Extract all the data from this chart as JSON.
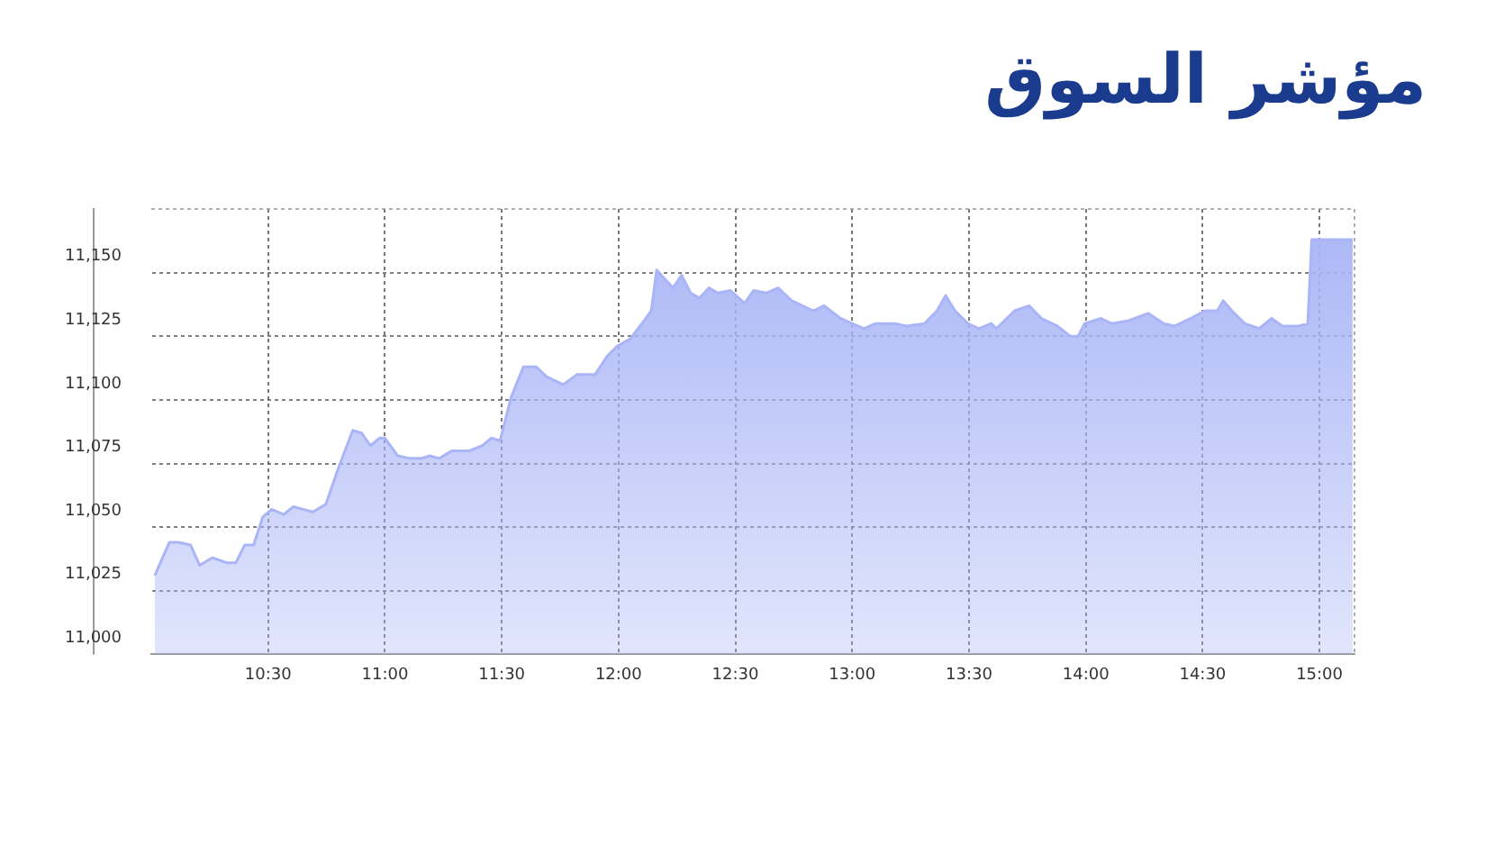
{
  "chart_data": {
    "type": "area",
    "title": "مؤشر السوق",
    "color": "#a9b5f6",
    "x": [
      10.015,
      10.077,
      10.115,
      10.168,
      10.207,
      10.262,
      10.323,
      10.362,
      10.4,
      10.438,
      10.477,
      10.515,
      10.567,
      10.608,
      10.65,
      10.692,
      10.747,
      10.8,
      10.862,
      10.9,
      10.938,
      10.977,
      11,
      11.055,
      11.108,
      11.155,
      11.193,
      11.233,
      11.287,
      11.362,
      11.417,
      11.455,
      11.493,
      11.54,
      11.593,
      11.647,
      11.693,
      11.763,
      11.823,
      11.9,
      11.95,
      11.993,
      12.05,
      12.108,
      12.14,
      12.163,
      12.193,
      12.233,
      12.27,
      12.308,
      12.347,
      12.387,
      12.425,
      12.478,
      12.54,
      12.578,
      12.633,
      12.683,
      12.74,
      12.833,
      12.88,
      12.95,
      13,
      13.05,
      13.1,
      13.183,
      13.233,
      13.31,
      13.363,
      13.4,
      13.44,
      13.495,
      13.542,
      13.595,
      13.617,
      13.695,
      13.757,
      13.81,
      13.878,
      13.933,
      13.967,
      13.995,
      14.065,
      14.11,
      14.178,
      14.267,
      14.333,
      14.38,
      14.448,
      14.51,
      14.563,
      14.588,
      14.625,
      14.68,
      14.742,
      14.795,
      14.842,
      14.91,
      14.95,
      14.967,
      15.142
    ],
    "values": [
      11031,
      11044,
      11044,
      11043,
      11035,
      11038,
      11036,
      11036,
      11043,
      11043,
      11054,
      11057,
      11055,
      11058,
      11057,
      11056,
      11059,
      11073,
      11088,
      11087,
      11082,
      11085,
      11085,
      11078,
      11077,
      11077,
      11078,
      11077,
      11080,
      11080,
      11082,
      11085,
      11084,
      11101,
      11113,
      11113,
      11109,
      11106,
      11110,
      11110,
      11117,
      11121,
      11124,
      11131,
      11135,
      11151,
      11148,
      11144,
      11149,
      11142,
      11140,
      11144,
      11142,
      11143,
      11138,
      11143,
      11142,
      11144,
      11139,
      11135,
      11137,
      11132,
      11130,
      11128,
      11130,
      11130,
      11129,
      11130,
      11135,
      11141,
      11135,
      11130,
      11128,
      11130,
      11128,
      11135,
      11137,
      11132,
      11129,
      11125,
      11125,
      11130,
      11132,
      11130,
      11131,
      11134,
      11130,
      11129,
      11132,
      11135,
      11135,
      11139,
      11135,
      11130,
      11128,
      11132,
      11129,
      11129,
      11130,
      11163,
      11163
    ],
    "xlim": [
      10,
      15.15
    ],
    "xticks": [
      {
        "value": 10.5,
        "label": "10:30"
      },
      {
        "value": 11,
        "label": "11:00"
      },
      {
        "value": 11.5,
        "label": "11:30"
      },
      {
        "value": 12,
        "label": "12:00"
      },
      {
        "value": 12.5,
        "label": "12:30"
      },
      {
        "value": 13,
        "label": "13:00"
      },
      {
        "value": 13.5,
        "label": "13:30"
      },
      {
        "value": 14,
        "label": "14:00"
      },
      {
        "value": 14.5,
        "label": "14:30"
      },
      {
        "value": 15,
        "label": "15:00"
      }
    ],
    "ylim": [
      11000,
      11175
    ],
    "yticks": [
      {
        "value": 11000,
        "label": "11,000"
      },
      {
        "value": 11025,
        "label": "11,025"
      },
      {
        "value": 11050,
        "label": "11,050"
      },
      {
        "value": 11075,
        "label": "11,075"
      },
      {
        "value": 11100,
        "label": "11,100"
      },
      {
        "value": 11125,
        "label": "11,125"
      },
      {
        "value": 11150,
        "label": "11,150"
      }
    ],
    "grid": true
  }
}
